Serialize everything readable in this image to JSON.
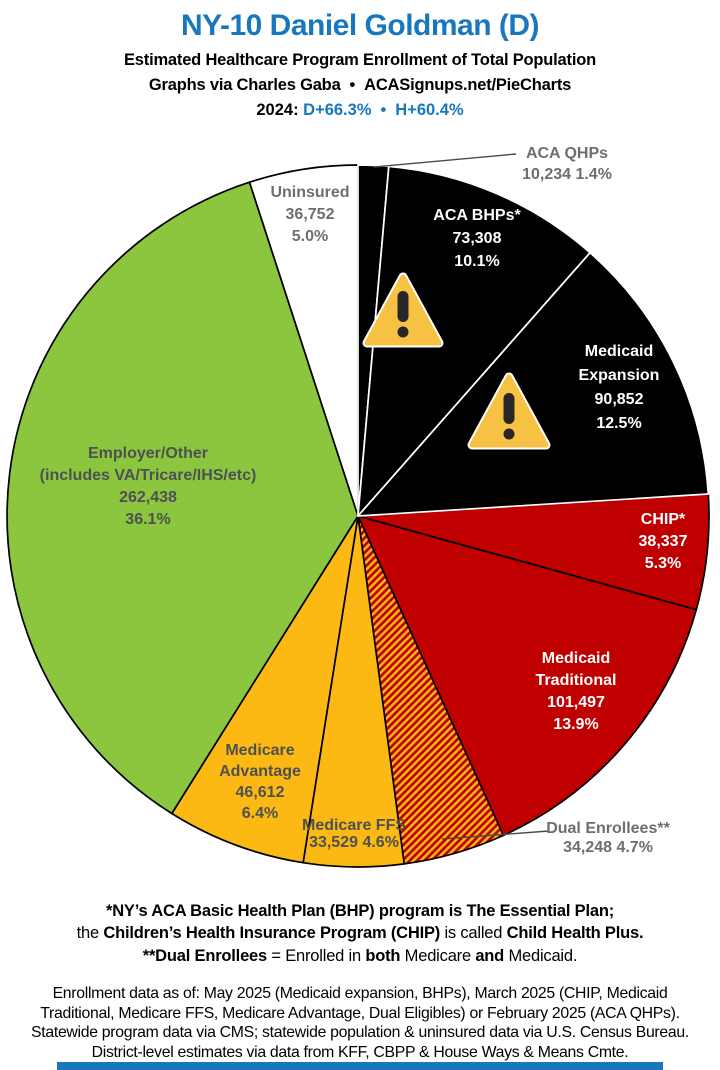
{
  "header": {
    "title": "NY-10 Daniel Goldman (D)",
    "subtitle": "Estimated Healthcare Program Enrollment of Total Population",
    "credit_left": "Graphs via Charles Gaba",
    "credit_separator": "•",
    "credit_right": "ACASignups.net/PieCharts",
    "year_label": "2024:",
    "margin_d": "D+66.3%",
    "margin_separator": "•",
    "margin_h": "H+60.4%",
    "accent_color": "#1977BD"
  },
  "chart_data": {
    "type": "pie",
    "title": "Estimated Healthcare Program Enrollment of Total Population",
    "units": "people",
    "direction": "clockwise",
    "start_angle_deg_from_top": 0,
    "hatch_colors": [
      "#C00000",
      "#FDB913"
    ],
    "slices": [
      {
        "label": "ACA QHPs",
        "value": 10234,
        "value_text": "10,234",
        "percent": 1.4,
        "percent_text": "1.4%",
        "color": "#000000",
        "label_placement": "outside-right",
        "leader_line": true
      },
      {
        "label": "ACA BHPs*",
        "value": 73308,
        "value_text": "73,308",
        "percent": 10.1,
        "percent_text": "10.1%",
        "color": "#000000",
        "label_placement": "inside"
      },
      {
        "label": "Medicaid Expansion",
        "value": 90852,
        "value_text": "90,852",
        "percent": 12.5,
        "percent_text": "12.5%",
        "color": "#000000",
        "label_placement": "inside"
      },
      {
        "label": "CHIP*",
        "value": 38337,
        "value_text": "38,337",
        "percent": 5.3,
        "percent_text": "5.3%",
        "color": "#C00000",
        "label_placement": "inside"
      },
      {
        "label": "Medicaid Traditional",
        "value": 101497,
        "value_text": "101,497",
        "percent": 13.9,
        "percent_text": "13.9%",
        "color": "#C00000",
        "label_placement": "inside"
      },
      {
        "label": "Dual Enrollees**",
        "value": 34248,
        "value_text": "34,248",
        "percent": 4.7,
        "percent_text": "4.7%",
        "color": "hatch",
        "label_placement": "outside-bottom",
        "leader_line": true
      },
      {
        "label": "Medicare FFS",
        "value": 33529,
        "value_text": "33,529",
        "percent": 4.6,
        "percent_text": "4.6%",
        "color": "#FDB913",
        "label_placement": "inside"
      },
      {
        "label": "Medicare Advantage",
        "value": 46612,
        "value_text": "46,612",
        "percent": 6.4,
        "percent_text": "6.4%",
        "color": "#FDB913",
        "label_placement": "inside"
      },
      {
        "label": "Employer/Other",
        "sublabel": "(includes VA/Tricare/IHS/etc)",
        "value": 262438,
        "value_text": "262,438",
        "percent": 36.1,
        "percent_text": "36.1%",
        "color": "#8CC63F",
        "label_placement": "inside"
      },
      {
        "label": "Uninsured",
        "value": 36752,
        "value_text": "36,752",
        "percent": 5.0,
        "percent_text": "5.0%",
        "color": "#FFFFFF",
        "label_placement": "inside"
      }
    ],
    "annotations": {
      "warning_icon": "warning-triangle",
      "warning_icon_count": 2
    }
  },
  "notes": {
    "line1": "*NY’s ACA Basic Health Plan (BHP) program is The Essential Plan;",
    "line2_parts": [
      "the ",
      "Children’s Health Insurance Program (CHIP)",
      " is called ",
      "Child Health Plus."
    ],
    "line3_parts": [
      "**Dual Enrollees",
      " = Enrolled in ",
      "both",
      " Medicare ",
      "and",
      " Medicaid."
    ]
  },
  "footer": {
    "line1": "Enrollment data as of: May 2025 (Medicaid expansion, BHPs), March 2025 (CHIP, Medicaid",
    "line2": "Traditional, Medicare FFS, Medicare Advantage, Dual Eligibles) or February 2025 (ACA QHPs).",
    "line3": "Statewide program data via CMS; statewide population & uninsured data via U.S. Census Bureau.",
    "line4": "District-level estimates via data from KFF, CBPP & House Ways & Means Cmte."
  }
}
